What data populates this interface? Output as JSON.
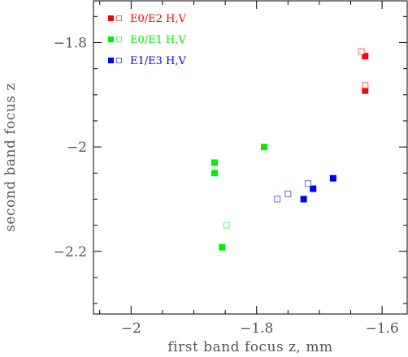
{
  "chart_data": {
    "type": "scatter",
    "title": "",
    "xlabel": "first band focus z, mm",
    "ylabel": "second band focus z",
    "xlim": [
      -2.06,
      -1.56
    ],
    "ylim": [
      -2.32,
      -1.72
    ],
    "xticks": [
      -2,
      -1.8,
      -1.6
    ],
    "yticks": [
      -2.2,
      -2,
      -1.8
    ],
    "xtick_labels": [
      "−2",
      "−1.8",
      "−1.6"
    ],
    "ytick_labels": [
      "−2.2",
      "−2",
      "−1.8"
    ],
    "grid": false,
    "legend_position": "top-left",
    "series": [
      {
        "name": "E0/E2",
        "suffix": "H,V",
        "color": "#ff0000",
        "filled": [
          [
            -1.627,
            -1.826
          ],
          [
            -1.627,
            -1.892
          ]
        ],
        "open": [
          [
            -1.633,
            -1.817
          ],
          [
            -1.627,
            -1.882
          ]
        ]
      },
      {
        "name": "E0/E1",
        "suffix": "H,V",
        "color": "#00ee00",
        "filled": [
          [
            -1.788,
            -2.0
          ],
          [
            -1.867,
            -2.03
          ],
          [
            -1.867,
            -2.05
          ],
          [
            -1.855,
            -2.192
          ]
        ],
        "open": [
          [
            -1.848,
            -2.15
          ]
        ]
      },
      {
        "name": "E1/E3",
        "suffix": "H,V",
        "color": "#0000ff",
        "filled": [
          [
            -1.678,
            -2.06
          ],
          [
            -1.71,
            -2.08
          ],
          [
            -1.725,
            -2.1
          ]
        ],
        "open": [
          [
            -1.718,
            -2.07
          ],
          [
            -1.75,
            -2.09
          ],
          [
            -1.767,
            -2.1
          ]
        ]
      }
    ]
  }
}
